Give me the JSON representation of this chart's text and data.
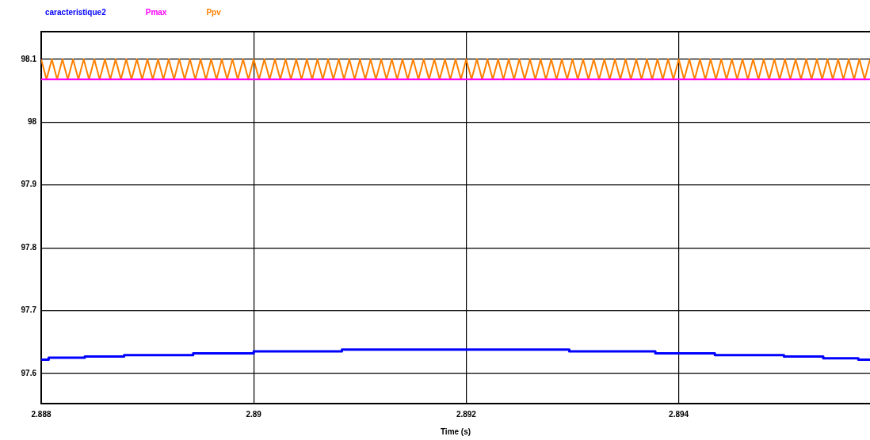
{
  "chart_data": {
    "type": "line",
    "xlabel": "Time (s)",
    "xlim": [
      2.888,
      2.8958
    ],
    "xticks": [
      2.888,
      2.89,
      2.892,
      2.894
    ],
    "ylim": [
      97.552,
      98.144
    ],
    "yticks": [
      97.6,
      97.7,
      97.8,
      97.9,
      98,
      98.1
    ],
    "grid": true,
    "legend": "top left",
    "marker": "none",
    "series": [
      {
        "name": "caracteristique2",
        "type": "step",
        "color": "#0000ff",
        "x": [
          2.888,
          2.88807,
          2.88841,
          2.88878,
          2.88943,
          2.89,
          2.89083,
          2.89297,
          2.89378,
          2.89434,
          2.89499,
          2.89536,
          2.89569,
          2.8958
        ],
        "values": [
          97.622,
          97.625,
          97.627,
          97.629,
          97.632,
          97.635,
          97.638,
          97.635,
          97.632,
          97.629,
          97.627,
          97.624,
          97.622,
          97.622
        ]
      },
      {
        "name": "Pmax",
        "color": "#ff00ff",
        "x": [
          2.888,
          2.8958
        ],
        "values": [
          98.068,
          98.068
        ]
      },
      {
        "name": "Ppv",
        "color": "#ff8000",
        "x": [
          2.888,
          2.88805,
          2.8881,
          2.88815,
          2.8882,
          2.88825,
          2.8883,
          2.88835,
          2.8884,
          2.88845,
          2.8885,
          2.88855,
          2.8886,
          2.88865,
          2.8887,
          2.88875,
          2.8888,
          2.88885,
          2.8889,
          2.88895,
          2.889,
          2.88905,
          2.8891,
          2.88915,
          2.8892,
          2.88925,
          2.8893,
          2.88935,
          2.8894,
          2.88945,
          2.8895,
          2.88955,
          2.8896,
          2.88965,
          2.8897,
          2.88975,
          2.8898,
          2.88985,
          2.8899,
          2.88995,
          2.89,
          2.89005,
          2.8901,
          2.89015,
          2.8902,
          2.89025,
          2.8903,
          2.89035,
          2.8904,
          2.89045,
          2.8905,
          2.89055,
          2.8906,
          2.89065,
          2.8907,
          2.89075,
          2.8908,
          2.89085,
          2.8909,
          2.89095,
          2.891,
          2.89105,
          2.8911,
          2.89115,
          2.8912,
          2.89125,
          2.8913,
          2.89135,
          2.8914,
          2.89145,
          2.8915,
          2.89155,
          2.8916,
          2.89165,
          2.8917,
          2.89175,
          2.8918,
          2.89185,
          2.8919,
          2.89195,
          2.892,
          2.89205,
          2.8921,
          2.89215,
          2.8922,
          2.89225,
          2.8923,
          2.89235,
          2.8924,
          2.89245,
          2.8925,
          2.89255,
          2.8926,
          2.89265,
          2.8927,
          2.89275,
          2.8928,
          2.89285,
          2.8929,
          2.89295,
          2.893,
          2.89305,
          2.8931,
          2.89315,
          2.8932,
          2.89325,
          2.8933,
          2.89335,
          2.8934,
          2.89345,
          2.8935,
          2.89355,
          2.8936,
          2.89365,
          2.8937,
          2.89375,
          2.8938,
          2.89385,
          2.8939,
          2.89395,
          2.894,
          2.89405,
          2.8941,
          2.89415,
          2.8942,
          2.89425,
          2.8943,
          2.89435,
          2.8944,
          2.89445,
          2.8945,
          2.89455,
          2.8946,
          2.89465,
          2.8947,
          2.89475,
          2.8948,
          2.89485,
          2.8949,
          2.89495,
          2.895,
          2.89505,
          2.8951,
          2.89515,
          2.8952,
          2.89525,
          2.8953,
          2.89535,
          2.8954,
          2.89545,
          2.8955,
          2.89555,
          2.8956,
          2.89565,
          2.8957,
          2.89575,
          2.8958
        ],
        "values": [
          98.1,
          98.068,
          98.1,
          98.068,
          98.1,
          98.068,
          98.1,
          98.068,
          98.1,
          98.068,
          98.1,
          98.068,
          98.1,
          98.068,
          98.1,
          98.068,
          98.1,
          98.068,
          98.1,
          98.068,
          98.1,
          98.068,
          98.1,
          98.068,
          98.1,
          98.068,
          98.1,
          98.068,
          98.1,
          98.068,
          98.1,
          98.068,
          98.1,
          98.068,
          98.1,
          98.068,
          98.1,
          98.068,
          98.1,
          98.068,
          98.1,
          98.068,
          98.1,
          98.068,
          98.1,
          98.068,
          98.1,
          98.068,
          98.1,
          98.068,
          98.1,
          98.068,
          98.1,
          98.068,
          98.1,
          98.068,
          98.1,
          98.068,
          98.1,
          98.068,
          98.1,
          98.068,
          98.1,
          98.068,
          98.1,
          98.068,
          98.1,
          98.068,
          98.1,
          98.068,
          98.1,
          98.068,
          98.1,
          98.068,
          98.1,
          98.068,
          98.1,
          98.068,
          98.1,
          98.068,
          98.1,
          98.068,
          98.1,
          98.068,
          98.1,
          98.068,
          98.1,
          98.068,
          98.1,
          98.068,
          98.1,
          98.068,
          98.1,
          98.068,
          98.1,
          98.068,
          98.1,
          98.068,
          98.1,
          98.068,
          98.1,
          98.068,
          98.1,
          98.068,
          98.1,
          98.068,
          98.1,
          98.068,
          98.1,
          98.068,
          98.1,
          98.068,
          98.1,
          98.068,
          98.1,
          98.068,
          98.1,
          98.068,
          98.1,
          98.068,
          98.1,
          98.068,
          98.1,
          98.068,
          98.1,
          98.068,
          98.1,
          98.068,
          98.1,
          98.068,
          98.1,
          98.068,
          98.1,
          98.068,
          98.1,
          98.068,
          98.1,
          98.068,
          98.1,
          98.068,
          98.1,
          98.068,
          98.1,
          98.068,
          98.1,
          98.068,
          98.1,
          98.068,
          98.1,
          98.068,
          98.1,
          98.068,
          98.1,
          98.068,
          98.1,
          98.068,
          98.1
        ]
      }
    ]
  }
}
